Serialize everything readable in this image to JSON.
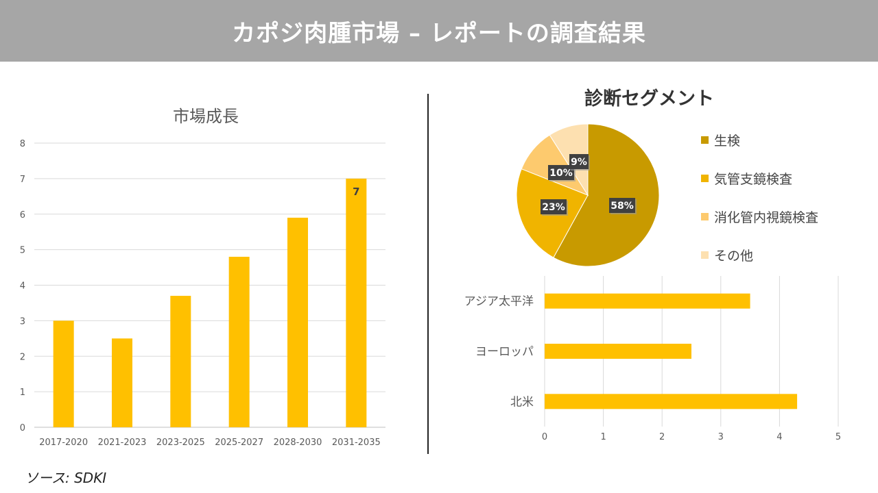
{
  "header": {
    "title": "カポジ肉腫市場 – レポートの調査結果"
  },
  "source": "ソース: SDKI",
  "chart_data": [
    {
      "type": "bar",
      "title": "市場成長",
      "categories": [
        "2017-2020",
        "2021-2023",
        "2023-2025",
        "2025-2027",
        "2028-2030",
        "2031-2035"
      ],
      "values": [
        3,
        2.5,
        3.7,
        4.8,
        5.9,
        7
      ],
      "data_labels": [
        "",
        "",
        "",
        "",
        "",
        "7"
      ],
      "ylim": [
        0,
        8
      ],
      "yticks": [
        "0",
        "1",
        "2",
        "3",
        "4",
        "5",
        "6",
        "7",
        "8"
      ],
      "grid": true,
      "color": "#ffc000"
    },
    {
      "type": "pie",
      "title": "診断セグメント",
      "categories": [
        "生検",
        "気管支鏡検査",
        "消化管内視鏡検査",
        "その他"
      ],
      "values": [
        58,
        23,
        10,
        9
      ],
      "data_labels": [
        "58%",
        "23%",
        "10%",
        "9%"
      ],
      "colors": [
        "#c89a00",
        "#f0b400",
        "#fdca6e",
        "#fde0b0"
      ],
      "legend": "right"
    },
    {
      "type": "bar",
      "orientation": "horizontal",
      "categories": [
        "アジア太平洋",
        "ヨーロッパ",
        "北米"
      ],
      "values": [
        3.5,
        2.5,
        4.3
      ],
      "xlim": [
        0,
        5
      ],
      "xticks": [
        "0",
        "1",
        "2",
        "3",
        "4",
        "5"
      ],
      "grid": true,
      "color": "#ffc000"
    }
  ]
}
